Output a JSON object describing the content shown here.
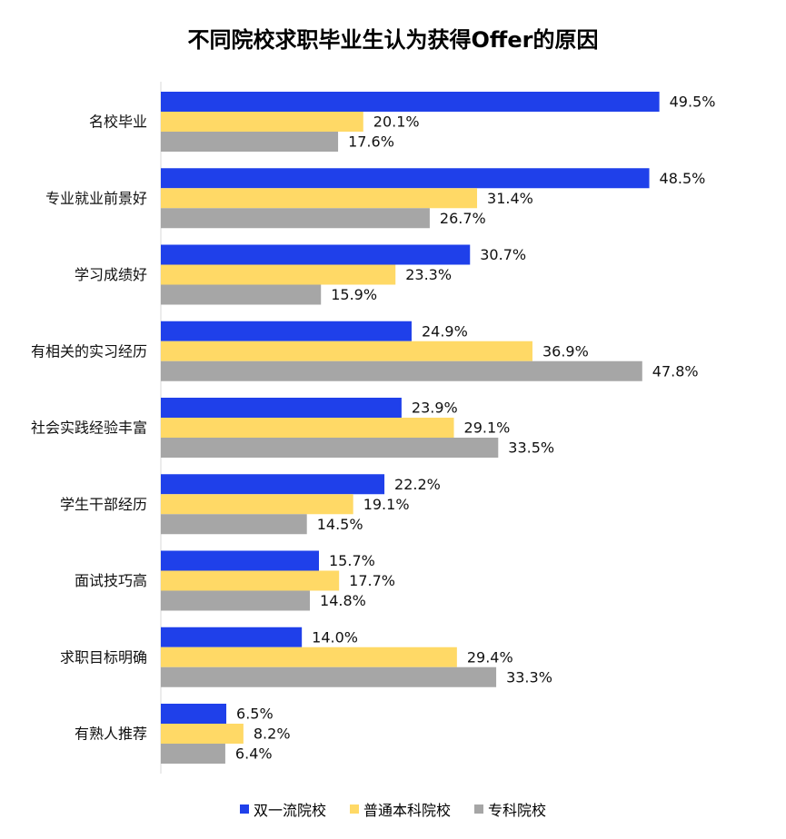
{
  "chart_data": {
    "type": "bar",
    "orientation": "horizontal",
    "title": "不同院校求职毕业生认为获得Offer的原因",
    "categories": [
      "名校毕业",
      "专业就业前景好",
      "学习成绩好",
      "有相关的实习经历",
      "社会实践经验丰富",
      "学生干部经历",
      "面试技巧高",
      "求职目标明确",
      "有熟人推荐"
    ],
    "series": [
      {
        "name": "双一流院校",
        "color": "#1F40EA",
        "values": [
          49.5,
          48.5,
          30.7,
          24.9,
          23.9,
          22.2,
          15.7,
          14.0,
          6.5
        ]
      },
      {
        "name": "普通本科院校",
        "color": "#FFD966",
        "values": [
          20.1,
          31.4,
          23.3,
          36.9,
          29.1,
          19.1,
          17.7,
          29.4,
          8.2
        ]
      },
      {
        "name": "专科院校",
        "color": "#A6A6A6",
        "values": [
          17.6,
          26.7,
          15.9,
          47.8,
          33.5,
          14.5,
          14.8,
          33.3,
          6.4
        ]
      }
    ],
    "value_suffix": "%",
    "value_decimals": 1,
    "xlim": [
      0,
      60
    ],
    "grid": false,
    "data_labels": true,
    "legend_position": "bottom"
  }
}
